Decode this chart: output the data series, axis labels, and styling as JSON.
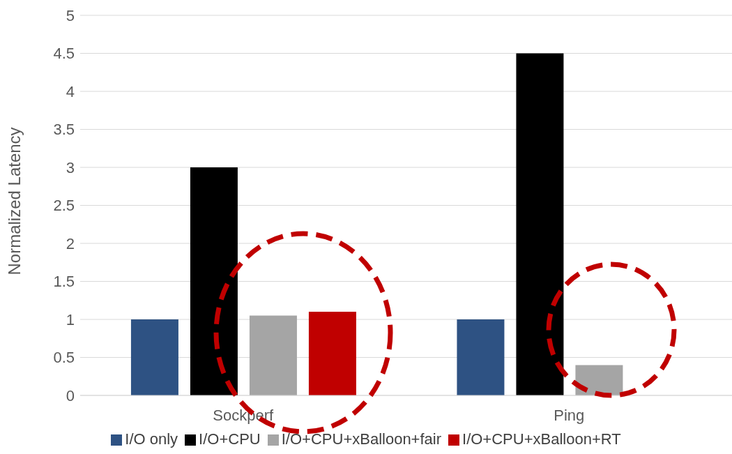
{
  "chart_data": {
    "type": "bar",
    "ylabel": "Normalized Latency",
    "categories": [
      "Sockperf",
      "Ping"
    ],
    "series": [
      {
        "name": "I/O only",
        "color": "#2e5283",
        "values": [
          1,
          1
        ]
      },
      {
        "name": "I/O+CPU",
        "color": "#000000",
        "values": [
          3,
          4.5
        ]
      },
      {
        "name": "I/O+CPU+xBalloon+fair",
        "color": "#a5a5a5",
        "values": [
          1.05,
          0.4
        ]
      },
      {
        "name": "I/O+CPU+xBalloon+RT",
        "color": "#c00000",
        "values": [
          1.1,
          null
        ]
      }
    ],
    "ylim": [
      0,
      5
    ],
    "yticks": [
      0,
      0.5,
      1,
      1.5,
      2,
      2.5,
      3,
      3.5,
      4,
      4.5,
      5
    ],
    "grid": "y",
    "legend": "bottom"
  }
}
